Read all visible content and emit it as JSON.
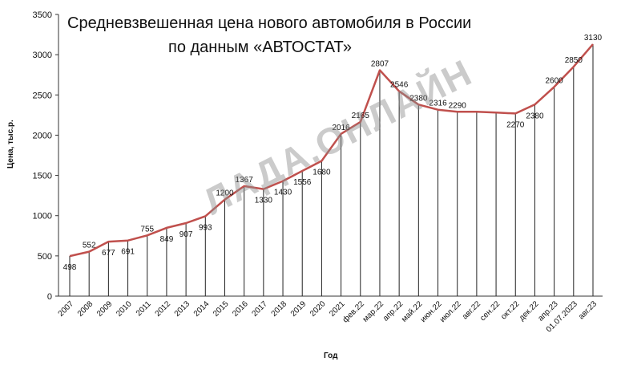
{
  "chart_data": {
    "type": "line",
    "title_line1": "Средневзвешенная цена нового автомобиля в России",
    "title_line2": "по данным «АВТОСТАТ»",
    "ylabel": "Цена, тыс.р.",
    "xlabel": "Год",
    "ylim": [
      0,
      3500
    ],
    "yticks": [
      0,
      500,
      1000,
      1500,
      2000,
      2500,
      3000,
      3500
    ],
    "categories": [
      "2007",
      "2008",
      "2009",
      "2010",
      "2011",
      "2012",
      "2013",
      "2014",
      "2015",
      "2016",
      "2017",
      "2018",
      "2019",
      "2020",
      "2021",
      "фев.22",
      "мар.22",
      "апр.22",
      "май.22",
      "июн.22",
      "июл.22",
      "авг.22",
      "сен.22",
      "окт.22",
      "дек.22",
      "апр.23",
      "01.07.2023",
      "авг.23"
    ],
    "series": [
      {
        "values": [
          498,
          552,
          677,
          691,
          755,
          849,
          907,
          993,
          1200,
          1367,
          1330,
          1430,
          1556,
          1680,
          2016,
          2165,
          2807,
          2546,
          2380,
          2316,
          2290,
          2290,
          2280,
          2270,
          2380,
          2600,
          2850,
          3130
        ],
        "labels": [
          "498",
          "552",
          "677",
          "691",
          "755",
          "849",
          "907",
          "993",
          "1200",
          "1367",
          "1330",
          "1430",
          "1556",
          "1680",
          "2016",
          "2165",
          "2807",
          "2546",
          "2380",
          "2316",
          "2290",
          "",
          "",
          "2270",
          "2380",
          "2600",
          "2850",
          "3130"
        ]
      }
    ],
    "line_color": "#c0504d",
    "grid": false,
    "watermark": "ЛАДА.ОНЛАЙН"
  }
}
